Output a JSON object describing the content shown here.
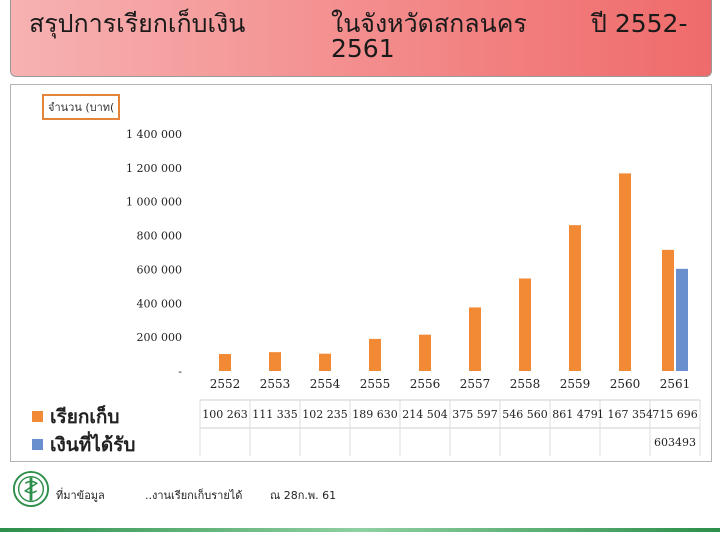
{
  "title": {
    "part1": "สรุปการเรียกเก็บเงิน",
    "part2": "ในจังหวัดสกลนคร",
    "part3": "ปี 2552-",
    "part4": "2561"
  },
  "chart_data": {
    "type": "bar",
    "unit_label": "จำนวน (บาท(",
    "categories": [
      "2552",
      "2553",
      "2554",
      "2555",
      "2556",
      "2557",
      "2558",
      "2559",
      "2560",
      "2561"
    ],
    "series": [
      {
        "name": "เรียกเก็บ",
        "color": "#f28a35",
        "values": [
          100263,
          111335,
          102235,
          189630,
          214504,
          375597,
          546560,
          861479,
          1167354,
          715696
        ],
        "labels": [
          "100 263",
          "111 335",
          "102 235",
          "189 630",
          "214 504",
          "375 597",
          "546 560",
          "861 479",
          "1 167 354",
          "715 696"
        ]
      },
      {
        "name": "เงินที่ได้รับ",
        "color": "#6a8fcf",
        "values": [
          null,
          null,
          null,
          null,
          null,
          null,
          null,
          null,
          null,
          603493
        ],
        "labels": [
          "",
          "",
          "",
          "",
          "",
          "",
          "",
          "",
          "",
          "603493"
        ]
      }
    ],
    "ylim": [
      0,
      1400000
    ],
    "yticks": [
      0,
      200000,
      400000,
      600000,
      800000,
      1000000,
      1200000,
      1400000
    ],
    "ytick_labels": [
      "-",
      "200 000",
      "400 000",
      "600 000",
      "800 000",
      "1 000 000",
      "1 200 000",
      "1 400 000"
    ],
    "grid": false,
    "legend": "data-table-bottom-left"
  },
  "footer": {
    "source": "ที่มาข้อมูล",
    "item": "..งานเรียกเก็บรายได้",
    "date": "ณ 28ก.พ. 61"
  }
}
